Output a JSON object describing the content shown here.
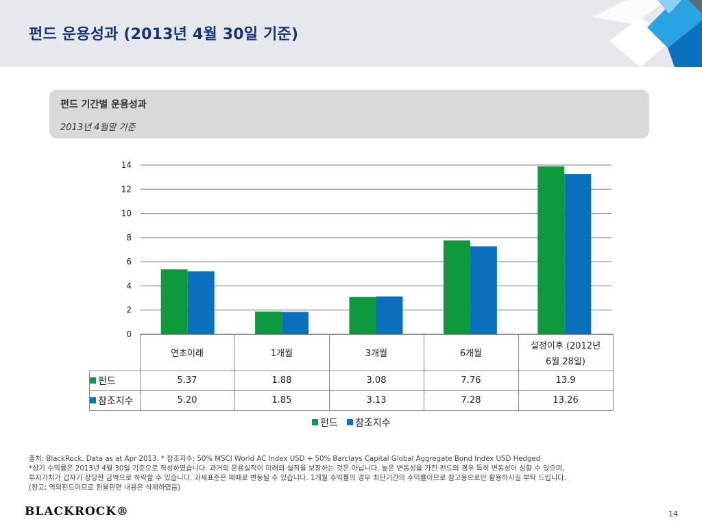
{
  "header": {
    "title": "펀드 운용성과 (2013년 4월 30일 기준)"
  },
  "panel": {
    "title": "펀드 기간별 운용성과",
    "subtitle": "2013년 4월말 기준"
  },
  "colors": {
    "fund": "#0d9a3d",
    "index": "#0b70be",
    "title": "#14357a",
    "grid": "#7a7a7a"
  },
  "chart_data": {
    "type": "bar",
    "categories": [
      "연초이래",
      "1개월",
      "3개월",
      "6개월",
      "설정이후 (2012년 6월 28일)"
    ],
    "category_lines": [
      [
        "연초이래"
      ],
      [
        "1개월"
      ],
      [
        "3개월"
      ],
      [
        "6개월"
      ],
      [
        "설정이후 (2012년",
        "6월 28일)"
      ]
    ],
    "series": [
      {
        "name": "펀드",
        "values": [
          5.37,
          1.88,
          3.08,
          7.76,
          13.9
        ],
        "labels": [
          "5.37",
          "1.88",
          "3.08",
          "7.76",
          "13.9"
        ]
      },
      {
        "name": "참조지수",
        "values": [
          5.2,
          1.85,
          3.13,
          7.28,
          13.26
        ],
        "labels": [
          "5.20",
          "1.85",
          "3.13",
          "7.28",
          "13.26"
        ]
      }
    ],
    "ylim": [
      0,
      14
    ],
    "yticks": [
      0,
      2,
      4,
      6,
      8,
      10,
      12,
      14
    ],
    "grid": true,
    "legend_position": "bottom"
  },
  "footer": {
    "lines": [
      "출처: BlackRock. Data as at Apr 2013. * 참조지수: 50% MSCI World AC Index USD + 50% Barclays Capital Global Aggregate Bond Index USD Hedged",
      "*상기 수익률은 2013년 4월 30일 기준으로 작성하였습니다. 과거의 운용실적이 미래의 실적을 보장하는 것은 아닙니다. 높은 변동성을 가진 펀드의 경우 특히 변동성이 심할 수 있으며,",
      "투자가치가 갑자기 상당한 금액으로 하락할 수 있습니다. 과세표준은 때때로 변동될 수 있습니다. 1개월 수익률의 경우 최단기간의 수익률이므로 참고용으로만 활용하시길 부탁 드립니다.",
      "(참고: 역외펀드이므로 환율관련 내용은 삭제하였음)"
    ]
  },
  "brand": "BLACKROCK®",
  "page_number": "14"
}
